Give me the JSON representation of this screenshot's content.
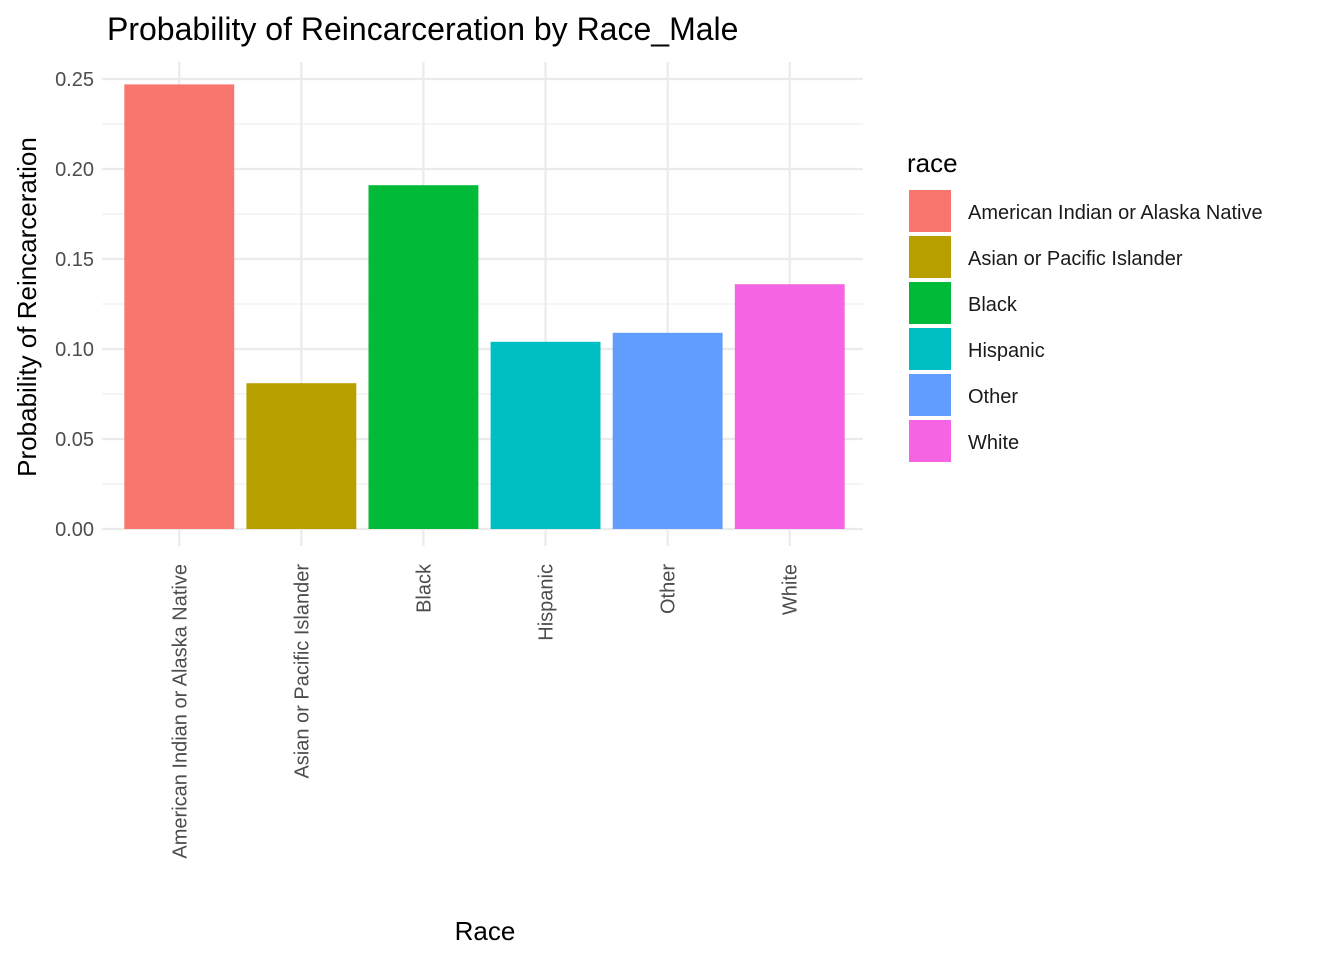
{
  "chart_data": {
    "type": "bar",
    "title": "Probability of Reincarceration by Race_Male",
    "xlabel": "Race",
    "ylabel": "Probability of Reincarceration",
    "categories": [
      "American Indian or Alaska Native",
      "Asian or Pacific Islander",
      "Black",
      "Hispanic",
      "Other",
      "White"
    ],
    "values": [
      0.247,
      0.081,
      0.191,
      0.104,
      0.109,
      0.136
    ],
    "colors": [
      "#F8766D",
      "#B79F00",
      "#00BA38",
      "#00BFC4",
      "#619CFF",
      "#F564E3"
    ],
    "ylim": [
      0,
      0.25
    ],
    "yticks": [
      "0.00",
      "0.05",
      "0.10",
      "0.15",
      "0.20",
      "0.25"
    ],
    "grid": true,
    "legend": {
      "title": "race",
      "position": "right",
      "entries": [
        "American Indian or Alaska Native",
        "Asian or Pacific Islander",
        "Black",
        "Hispanic",
        "Other",
        "White"
      ]
    }
  }
}
